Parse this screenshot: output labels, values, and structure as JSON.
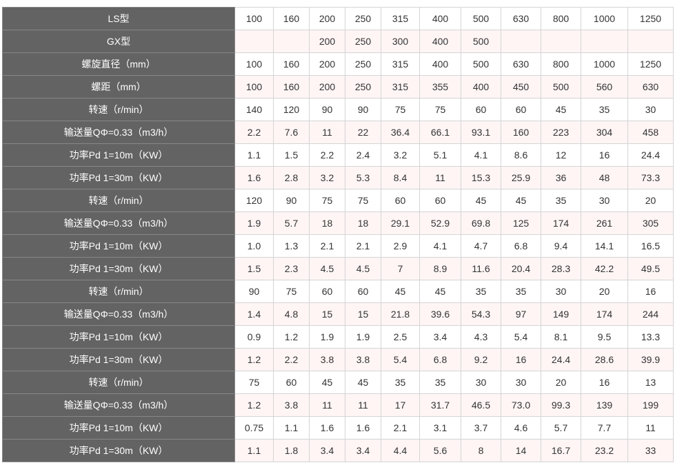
{
  "table": {
    "rows": [
      {
        "label": "LS型",
        "cells": [
          "100",
          "160",
          "200",
          "250",
          "315",
          "400",
          "500",
          "630",
          "800",
          "1000",
          "1250"
        ]
      },
      {
        "label": "GX型",
        "cells": [
          null,
          null,
          "200",
          "250",
          "300",
          "400",
          "500",
          null,
          null,
          null,
          null
        ]
      },
      {
        "label": "螺旋直径（mm）",
        "cells": [
          "100",
          "160",
          "200",
          "250",
          "315",
          "400",
          "500",
          "630",
          "800",
          "1000",
          "1250"
        ]
      },
      {
        "label": "螺距（mm）",
        "cells": [
          "100",
          "160",
          "200",
          "250",
          "315",
          "355",
          "400",
          "450",
          "500",
          "560",
          "630"
        ]
      },
      {
        "label": "转速（r/min）",
        "cells": [
          "140",
          "120",
          "90",
          "90",
          "75",
          "75",
          "60",
          "60",
          "45",
          "35",
          "30"
        ]
      },
      {
        "label": "输送量QΦ=0.33（m3/h）",
        "cells": [
          "2.2",
          "7.6",
          "11",
          "22",
          "36.4",
          "66.1",
          "93.1",
          "160",
          "223",
          "304",
          "458"
        ]
      },
      {
        "label": "功率Pd 1=10m（KW）",
        "cells": [
          "1.1",
          "1.5",
          "2.2",
          "2.4",
          "3.2",
          "5.1",
          "4.1",
          "8.6",
          "12",
          "16",
          "24.4"
        ]
      },
      {
        "label": "功率Pd 1=30m（KW）",
        "cells": [
          "1.6",
          "2.8",
          "3.2",
          "5.3",
          "8.4",
          "11",
          "15.3",
          "25.9",
          "36",
          "48",
          "73.3"
        ]
      },
      {
        "label": "转速（r/min）",
        "cells": [
          "120",
          "90",
          "75",
          "75",
          "60",
          "60",
          "45",
          "45",
          "35",
          "30",
          "20"
        ]
      },
      {
        "label": "输送量QΦ=0.33（m3/h）",
        "cells": [
          "1.9",
          "5.7",
          "18",
          "18",
          "29.1",
          "52.9",
          "69.8",
          "125",
          "174",
          "261",
          "305"
        ]
      },
      {
        "label": "功率Pd 1=10m（KW）",
        "cells": [
          "1.0",
          "1.3",
          "2.1",
          "2.1",
          "2.9",
          "4.1",
          "4.7",
          "6.8",
          "9.4",
          "14.1",
          "16.5"
        ]
      },
      {
        "label": "功率Pd 1=30m（KW）",
        "cells": [
          "1.5",
          "2.3",
          "4.5",
          "4.5",
          "7",
          "8.9",
          "11.6",
          "20.4",
          "28.3",
          "42.2",
          "49.5"
        ]
      },
      {
        "label": "转速（r/min）",
        "cells": [
          "90",
          "75",
          "60",
          "60",
          "45",
          "45",
          "35",
          "35",
          "30",
          "20",
          "16"
        ]
      },
      {
        "label": "输送量QΦ=0.33（m3/h）",
        "cells": [
          "1.4",
          "4.8",
          "15",
          "15",
          "21.8",
          "39.6",
          "54.3",
          "97",
          "149",
          "174",
          "244"
        ]
      },
      {
        "label": "功率Pd 1=10m（KW）",
        "cells": [
          "0.9",
          "1.2",
          "1.9",
          "1.9",
          "2.5",
          "3.4",
          "4.3",
          "5.4",
          "8.1",
          "9.5",
          "13.3"
        ]
      },
      {
        "label": "功率Pd 1=30m（KW）",
        "cells": [
          "1.2",
          "2.2",
          "3.8",
          "3.8",
          "5.4",
          "6.8",
          "9.2",
          "16",
          "24.4",
          "28.6",
          "39.9"
        ]
      },
      {
        "label": "转速（r/min）",
        "cells": [
          "75",
          "60",
          "45",
          "45",
          "35",
          "35",
          "30",
          "30",
          "20",
          "16",
          "13"
        ]
      },
      {
        "label": "输送量QΦ=0.33（m3/h）",
        "cells": [
          "1.2",
          "3.8",
          "11",
          "11",
          "17",
          "31.7",
          "46.5",
          "73.0",
          "99.3",
          "139",
          "199"
        ]
      },
      {
        "label": "功率Pd 1=10m（KW）",
        "cells": [
          "0.75",
          "1.1",
          "1.6",
          "1.6",
          "2.1",
          "3.1",
          "3.7",
          "4.6",
          "5.7",
          "7.7",
          "11"
        ]
      },
      {
        "label": "功率Pd 1=30m（KW）",
        "cells": [
          "1.1",
          "1.8",
          "3.4",
          "3.4",
          "4.4",
          "5.6",
          "8",
          "14",
          "16.7",
          "23.2",
          "33"
        ]
      }
    ]
  }
}
